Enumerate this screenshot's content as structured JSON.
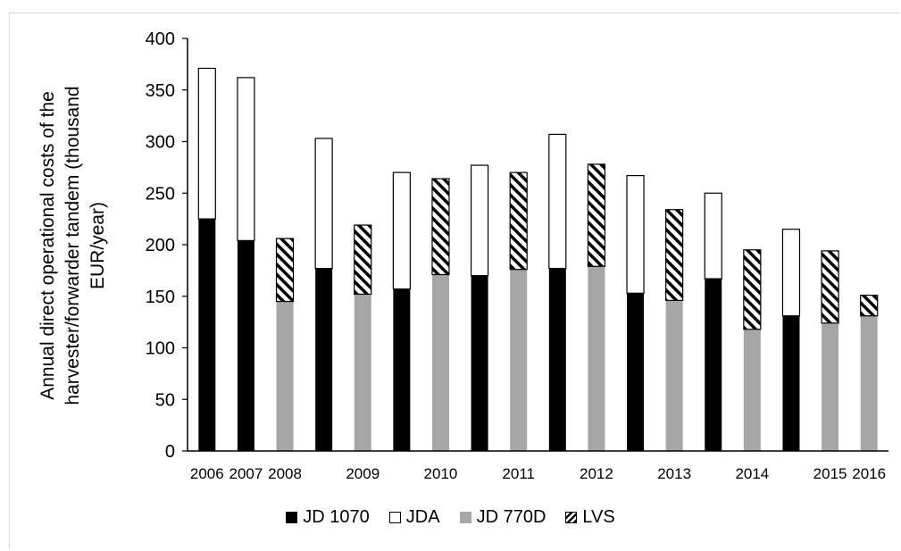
{
  "chart_data": {
    "type": "bar",
    "stacked": true,
    "ylabel": "Annual direct operational costs of the harvester/forwarder tandem (thousand EUR/year)",
    "ylabel_lines": [
      "Annual direct operational costs of the",
      "harvester/forwarder tandem (thousand",
      "EUR/year)"
    ],
    "ylim": [
      0,
      400
    ],
    "yticks": [
      0,
      50,
      100,
      150,
      200,
      250,
      300,
      350,
      400
    ],
    "x_tick_labels": [
      "2006",
      "2007",
      "2008",
      "",
      "2009",
      "",
      "2010",
      "",
      "2011",
      "",
      "2012",
      "",
      "2013",
      "",
      "2014",
      "",
      "2015",
      "2016"
    ],
    "bars": [
      {
        "base_series": "JD 1070",
        "base": 225,
        "top_series": "JDA",
        "top": 146
      },
      {
        "base_series": "JD 1070",
        "base": 204,
        "top_series": "JDA",
        "top": 158
      },
      {
        "base_series": "JD 770D",
        "base": 145,
        "top_series": "LVS",
        "top": 61
      },
      {
        "base_series": "JD 1070",
        "base": 177,
        "top_series": "JDA",
        "top": 126
      },
      {
        "base_series": "JD 770D",
        "base": 152,
        "top_series": "LVS",
        "top": 67
      },
      {
        "base_series": "JD 1070",
        "base": 157,
        "top_series": "JDA",
        "top": 113
      },
      {
        "base_series": "JD 770D",
        "base": 171,
        "top_series": "LVS",
        "top": 93
      },
      {
        "base_series": "JD 1070",
        "base": 170,
        "top_series": "JDA",
        "top": 107
      },
      {
        "base_series": "JD 770D",
        "base": 176,
        "top_series": "LVS",
        "top": 94
      },
      {
        "base_series": "JD 1070",
        "base": 177,
        "top_series": "JDA",
        "top": 130
      },
      {
        "base_series": "JD 770D",
        "base": 179,
        "top_series": "LVS",
        "top": 99
      },
      {
        "base_series": "JD 1070",
        "base": 153,
        "top_series": "JDA",
        "top": 114
      },
      {
        "base_series": "JD 770D",
        "base": 146,
        "top_series": "LVS",
        "top": 88
      },
      {
        "base_series": "JD 1070",
        "base": 167,
        "top_series": "JDA",
        "top": 83
      },
      {
        "base_series": "JD 770D",
        "base": 118,
        "top_series": "LVS",
        "top": 77
      },
      {
        "base_series": "JD 1070",
        "base": 131,
        "top_series": "JDA",
        "top": 84
      },
      {
        "base_series": "JD 770D",
        "base": 124,
        "top_series": "LVS",
        "top": 70
      },
      {
        "base_series": "JD 770D",
        "base": 131,
        "top_series": "LVS",
        "top": 20
      }
    ],
    "series": [
      {
        "name": "JD 1070",
        "color": "#000000"
      },
      {
        "name": "JDA",
        "color": "#ffffff"
      },
      {
        "name": "JD 770D",
        "color": "#a6a6a6"
      },
      {
        "name": "LVS",
        "color": "hatched"
      }
    ],
    "legend_position": "bottom",
    "grid": false
  }
}
